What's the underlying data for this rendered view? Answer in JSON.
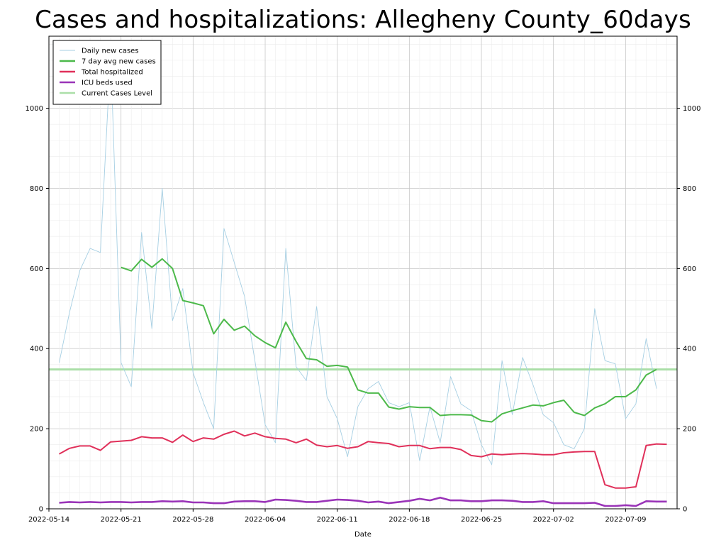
{
  "chart_data": {
    "type": "line",
    "title": "Cases and hospitalizations: Allegheny County_60days",
    "xlabel": "Date",
    "ylabel": "",
    "ylim": [
      0,
      1180
    ],
    "xlim": [
      "2022-05-14",
      "2022-07-14"
    ],
    "x_ticks": [
      "2022-05-14",
      "2022-05-21",
      "2022-05-28",
      "2022-06-04",
      "2022-06-11",
      "2022-06-18",
      "2022-06-25",
      "2022-07-02",
      "2022-07-09"
    ],
    "y_ticks": [
      0,
      200,
      400,
      600,
      800,
      1000
    ],
    "grid": true,
    "legend_position": "top-left",
    "series": [
      {
        "name": "Daily new cases",
        "color": "#a6cfe3",
        "points": [
          [
            "2022-05-15",
            365
          ],
          [
            "2022-05-16",
            490
          ],
          [
            "2022-05-17",
            595
          ],
          [
            "2022-05-18",
            650
          ],
          [
            "2022-05-19",
            640
          ],
          [
            "2022-05-20",
            1140
          ],
          [
            "2022-05-21",
            365
          ],
          [
            "2022-05-22",
            305
          ],
          [
            "2022-05-23",
            690
          ],
          [
            "2022-05-24",
            450
          ],
          [
            "2022-05-25",
            800
          ],
          [
            "2022-05-26",
            470
          ],
          [
            "2022-05-27",
            550
          ],
          [
            "2022-05-28",
            340
          ],
          [
            "2022-05-29",
            265
          ],
          [
            "2022-05-30",
            200
          ],
          [
            "2022-05-31",
            700
          ],
          [
            "2022-06-01",
            615
          ],
          [
            "2022-06-02",
            530
          ],
          [
            "2022-06-03",
            370
          ],
          [
            "2022-06-04",
            210
          ],
          [
            "2022-06-05",
            165
          ],
          [
            "2022-06-06",
            650
          ],
          [
            "2022-06-07",
            355
          ],
          [
            "2022-06-08",
            320
          ],
          [
            "2022-06-09",
            505
          ],
          [
            "2022-06-10",
            280
          ],
          [
            "2022-06-11",
            225
          ],
          [
            "2022-06-12",
            130
          ],
          [
            "2022-06-13",
            255
          ],
          [
            "2022-06-14",
            300
          ],
          [
            "2022-06-15",
            318
          ],
          [
            "2022-06-16",
            265
          ],
          [
            "2022-06-17",
            255
          ],
          [
            "2022-06-18",
            265
          ],
          [
            "2022-06-19",
            120
          ],
          [
            "2022-06-20",
            255
          ],
          [
            "2022-06-21",
            165
          ],
          [
            "2022-06-22",
            330
          ],
          [
            "2022-06-23",
            262
          ],
          [
            "2022-06-24",
            245
          ],
          [
            "2022-06-25",
            160
          ],
          [
            "2022-06-26",
            110
          ],
          [
            "2022-06-27",
            370
          ],
          [
            "2022-06-28",
            235
          ],
          [
            "2022-06-29",
            378
          ],
          [
            "2022-06-30",
            310
          ],
          [
            "2022-07-01",
            235
          ],
          [
            "2022-07-02",
            215
          ],
          [
            "2022-07-03",
            160
          ],
          [
            "2022-07-04",
            150
          ],
          [
            "2022-07-05",
            200
          ],
          [
            "2022-07-06",
            500
          ],
          [
            "2022-07-07",
            370
          ],
          [
            "2022-07-08",
            362
          ],
          [
            "2022-07-09",
            225
          ],
          [
            "2022-07-10",
            262
          ],
          [
            "2022-07-11",
            425
          ],
          [
            "2022-07-12",
            300
          ]
        ]
      },
      {
        "name": "7 day avg new cases",
        "color": "#4cb94a",
        "points": [
          [
            "2022-05-21",
            603
          ],
          [
            "2022-05-22",
            594
          ],
          [
            "2022-05-23",
            623
          ],
          [
            "2022-05-24",
            603
          ],
          [
            "2022-05-25",
            624
          ],
          [
            "2022-05-26",
            600
          ],
          [
            "2022-05-27",
            520
          ],
          [
            "2022-05-28",
            514
          ],
          [
            "2022-05-29",
            507
          ],
          [
            "2022-05-30",
            437
          ],
          [
            "2022-05-31",
            473
          ],
          [
            "2022-06-01",
            446
          ],
          [
            "2022-06-02",
            456
          ],
          [
            "2022-06-03",
            432
          ],
          [
            "2022-06-04",
            415
          ],
          [
            "2022-06-05",
            402
          ],
          [
            "2022-06-06",
            466
          ],
          [
            "2022-06-07",
            418
          ],
          [
            "2022-06-08",
            375
          ],
          [
            "2022-06-09",
            372
          ],
          [
            "2022-06-10",
            356
          ],
          [
            "2022-06-11",
            358
          ],
          [
            "2022-06-12",
            354
          ],
          [
            "2022-06-13",
            297
          ],
          [
            "2022-06-14",
            289
          ],
          [
            "2022-06-15",
            289
          ],
          [
            "2022-06-16",
            254
          ],
          [
            "2022-06-17",
            249
          ],
          [
            "2022-06-18",
            255
          ],
          [
            "2022-06-19",
            253
          ],
          [
            "2022-06-20",
            253
          ],
          [
            "2022-06-21",
            233
          ],
          [
            "2022-06-22",
            235
          ],
          [
            "2022-06-23",
            235
          ],
          [
            "2022-06-24",
            234
          ],
          [
            "2022-06-25",
            220
          ],
          [
            "2022-06-26",
            217
          ],
          [
            "2022-06-27",
            237
          ],
          [
            "2022-06-28",
            245
          ],
          [
            "2022-06-29",
            252
          ],
          [
            "2022-06-30",
            259
          ],
          [
            "2022-07-01",
            257
          ],
          [
            "2022-07-02",
            265
          ],
          [
            "2022-07-03",
            271
          ],
          [
            "2022-07-04",
            241
          ],
          [
            "2022-07-05",
            233
          ],
          [
            "2022-07-06",
            252
          ],
          [
            "2022-07-07",
            262
          ],
          [
            "2022-07-08",
            280
          ],
          [
            "2022-07-09",
            280
          ],
          [
            "2022-07-10",
            297
          ],
          [
            "2022-07-11",
            334
          ],
          [
            "2022-07-12",
            348
          ]
        ]
      },
      {
        "name": "Total hospitalized",
        "color": "#e0305a",
        "points": [
          [
            "2022-05-15",
            137
          ],
          [
            "2022-05-16",
            151
          ],
          [
            "2022-05-17",
            157
          ],
          [
            "2022-05-18",
            157
          ],
          [
            "2022-05-19",
            146
          ],
          [
            "2022-05-20",
            167
          ],
          [
            "2022-05-21",
            169
          ],
          [
            "2022-05-22",
            171
          ],
          [
            "2022-05-23",
            180
          ],
          [
            "2022-05-24",
            177
          ],
          [
            "2022-05-25",
            177
          ],
          [
            "2022-05-26",
            166
          ],
          [
            "2022-05-27",
            184
          ],
          [
            "2022-05-28",
            168
          ],
          [
            "2022-05-29",
            177
          ],
          [
            "2022-05-30",
            174
          ],
          [
            "2022-05-31",
            186
          ],
          [
            "2022-06-01",
            194
          ],
          [
            "2022-06-02",
            182
          ],
          [
            "2022-06-03",
            189
          ],
          [
            "2022-06-04",
            180
          ],
          [
            "2022-06-05",
            176
          ],
          [
            "2022-06-06",
            174
          ],
          [
            "2022-06-07",
            165
          ],
          [
            "2022-06-08",
            174
          ],
          [
            "2022-06-09",
            159
          ],
          [
            "2022-06-10",
            155
          ],
          [
            "2022-06-11",
            158
          ],
          [
            "2022-06-12",
            151
          ],
          [
            "2022-06-13",
            155
          ],
          [
            "2022-06-14",
            168
          ],
          [
            "2022-06-15",
            165
          ],
          [
            "2022-06-16",
            163
          ],
          [
            "2022-06-17",
            155
          ],
          [
            "2022-06-18",
            158
          ],
          [
            "2022-06-19",
            158
          ],
          [
            "2022-06-20",
            150
          ],
          [
            "2022-06-21",
            153
          ],
          [
            "2022-06-22",
            153
          ],
          [
            "2022-06-23",
            148
          ],
          [
            "2022-06-24",
            133
          ],
          [
            "2022-06-25",
            130
          ],
          [
            "2022-06-26",
            137
          ],
          [
            "2022-06-27",
            135
          ],
          [
            "2022-06-28",
            137
          ],
          [
            "2022-06-29",
            138
          ],
          [
            "2022-06-30",
            137
          ],
          [
            "2022-07-01",
            135
          ],
          [
            "2022-07-02",
            135
          ],
          [
            "2022-07-03",
            140
          ],
          [
            "2022-07-04",
            142
          ],
          [
            "2022-07-05",
            143
          ],
          [
            "2022-07-06",
            143
          ],
          [
            "2022-07-07",
            60
          ],
          [
            "2022-07-08",
            52
          ],
          [
            "2022-07-09",
            52
          ],
          [
            "2022-07-10",
            55
          ],
          [
            "2022-07-11",
            158
          ],
          [
            "2022-07-12",
            162
          ],
          [
            "2022-07-13",
            161
          ]
        ]
      },
      {
        "name": "ICU beds used",
        "color": "#9a34b8",
        "points": [
          [
            "2022-05-15",
            15
          ],
          [
            "2022-05-16",
            17
          ],
          [
            "2022-05-17",
            16
          ],
          [
            "2022-05-18",
            17
          ],
          [
            "2022-05-19",
            16
          ],
          [
            "2022-05-20",
            17
          ],
          [
            "2022-05-21",
            17
          ],
          [
            "2022-05-22",
            16
          ],
          [
            "2022-05-23",
            17
          ],
          [
            "2022-05-24",
            17
          ],
          [
            "2022-05-25",
            19
          ],
          [
            "2022-05-26",
            18
          ],
          [
            "2022-05-27",
            19
          ],
          [
            "2022-05-28",
            16
          ],
          [
            "2022-05-29",
            16
          ],
          [
            "2022-05-30",
            14
          ],
          [
            "2022-05-31",
            14
          ],
          [
            "2022-06-01",
            18
          ],
          [
            "2022-06-02",
            19
          ],
          [
            "2022-06-03",
            19
          ],
          [
            "2022-06-04",
            17
          ],
          [
            "2022-06-05",
            23
          ],
          [
            "2022-06-06",
            22
          ],
          [
            "2022-06-07",
            20
          ],
          [
            "2022-06-08",
            17
          ],
          [
            "2022-06-09",
            17
          ],
          [
            "2022-06-10",
            20
          ],
          [
            "2022-06-11",
            23
          ],
          [
            "2022-06-12",
            22
          ],
          [
            "2022-06-13",
            20
          ],
          [
            "2022-06-14",
            16
          ],
          [
            "2022-06-15",
            18
          ],
          [
            "2022-06-16",
            14
          ],
          [
            "2022-06-17",
            17
          ],
          [
            "2022-06-18",
            20
          ],
          [
            "2022-06-19",
            25
          ],
          [
            "2022-06-20",
            21
          ],
          [
            "2022-06-21",
            28
          ],
          [
            "2022-06-22",
            21
          ],
          [
            "2022-06-23",
            21
          ],
          [
            "2022-06-24",
            19
          ],
          [
            "2022-06-25",
            19
          ],
          [
            "2022-06-26",
            21
          ],
          [
            "2022-06-27",
            21
          ],
          [
            "2022-06-28",
            20
          ],
          [
            "2022-06-29",
            17
          ],
          [
            "2022-06-30",
            17
          ],
          [
            "2022-07-01",
            19
          ],
          [
            "2022-07-02",
            14
          ],
          [
            "2022-07-03",
            14
          ],
          [
            "2022-07-04",
            14
          ],
          [
            "2022-07-05",
            14
          ],
          [
            "2022-07-06",
            15
          ],
          [
            "2022-07-07",
            7
          ],
          [
            "2022-07-08",
            7
          ],
          [
            "2022-07-09",
            9
          ],
          [
            "2022-07-10",
            7
          ],
          [
            "2022-07-11",
            19
          ],
          [
            "2022-07-12",
            18
          ],
          [
            "2022-07-13",
            18
          ]
        ]
      },
      {
        "name": "Current Cases Level",
        "color": "#abdfa8",
        "type": "hline",
        "value": 348
      }
    ]
  }
}
